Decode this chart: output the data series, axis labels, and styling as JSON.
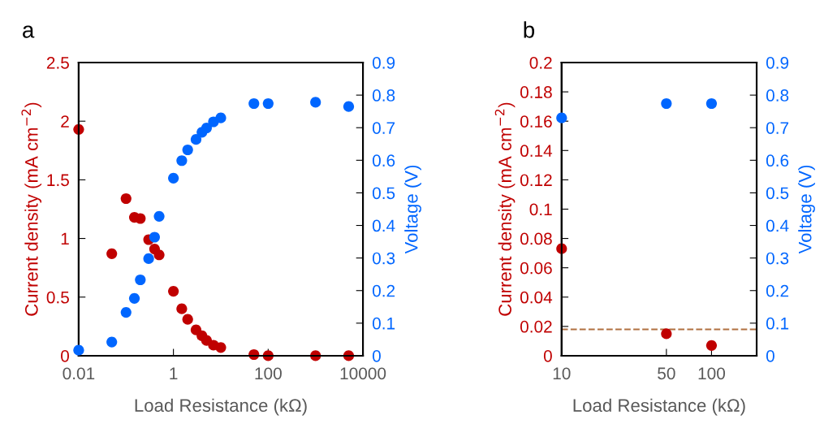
{
  "chart_data": [
    {
      "type": "scatter",
      "title": "a",
      "xlabel": "Load Resistance (kΩ)",
      "ylabel": "Current density (mA cm$^{−2}$)",
      "y2label": "Voltage (V)",
      "log": "x",
      "marker": "circle",
      "grid": false,
      "legend": false,
      "xlim": [
        0.01,
        10000
      ],
      "xticks": [
        0.01,
        1,
        100,
        10000
      ],
      "ylim": [
        0,
        2.5
      ],
      "yticks": [
        0,
        0.5,
        1,
        1.5,
        2,
        2.5
      ],
      "y2lim": [
        0,
        0.9
      ],
      "y2ticks": [
        0,
        0.1,
        0.2,
        0.3,
        0.4,
        0.5,
        0.6,
        0.7,
        0.8,
        0.9
      ],
      "x": [
        0.01,
        0.05,
        0.1,
        0.15,
        0.2,
        0.3,
        0.4,
        0.5,
        1,
        1.5,
        2,
        3,
        4,
        5,
        7,
        10,
        50,
        100,
        1000,
        5000
      ],
      "series": [
        {
          "color": "#c00000",
          "values": [
            1.93,
            0.87,
            1.34,
            1.18,
            1.17,
            0.99,
            0.91,
            0.86,
            0.55,
            0.4,
            0.31,
            0.22,
            0.17,
            0.13,
            0.09,
            0.07,
            0.01,
            0,
            0,
            0
          ]
        },
        {
          "color": "#0066ff",
          "axis": "y2",
          "values": [
            0.017,
            0.042,
            0.133,
            0.176,
            0.233,
            0.298,
            0.364,
            0.428,
            0.545,
            0.599,
            0.632,
            0.664,
            0.686,
            0.699,
            0.718,
            0.73,
            0.774,
            0.774,
            0.778,
            0.765
          ]
        }
      ]
    },
    {
      "type": "scatter",
      "title": "b",
      "xlabel": "Load Resistance (kΩ)",
      "ylabel": "Current density (mA cm$^{−2}$)",
      "y2label": "Voltage (V)",
      "log": "x",
      "marker": "circle",
      "grid": false,
      "legend": false,
      "xlim": [
        10,
        200
      ],
      "xticks": [
        10,
        50,
        100
      ],
      "ylim": [
        0,
        0.2
      ],
      "yticks": [
        0,
        0.02,
        0.04,
        0.06,
        0.08,
        0.1,
        0.12,
        0.14,
        0.16,
        0.18,
        0.2
      ],
      "y2lim": [
        0,
        0.9
      ],
      "y2ticks": [
        0,
        0.1,
        0.2,
        0.3,
        0.4,
        0.5,
        0.6,
        0.7,
        0.8,
        0.9
      ],
      "x": [
        10,
        50,
        100
      ],
      "series": [
        {
          "color": "#c00000",
          "values": [
            0.073,
            0.015,
            0.007
          ]
        },
        {
          "color": "#0066ff",
          "axis": "y2",
          "values": [
            0.73,
            0.774,
            0.774
          ]
        }
      ],
      "ref_lines": [
        {
          "axis": "y",
          "value": 0.018,
          "color": "#b07040",
          "line_style": "dashed"
        }
      ]
    }
  ]
}
